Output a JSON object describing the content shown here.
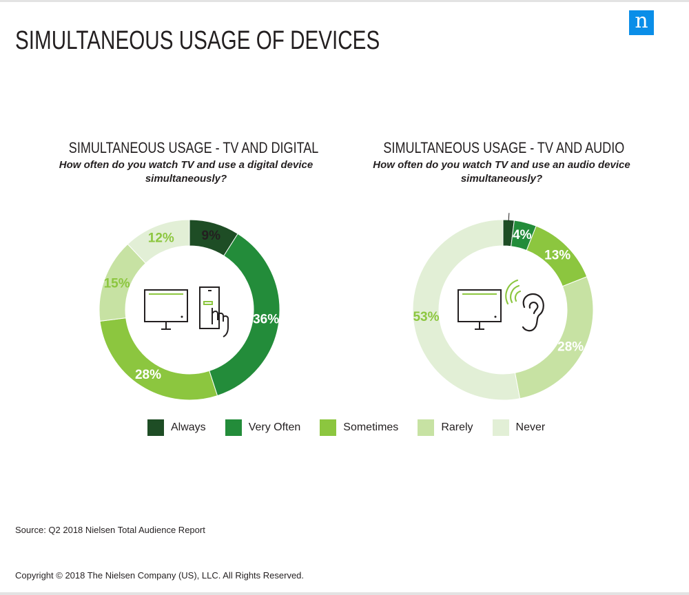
{
  "header": {
    "title": "SIMULTANEOUS USAGE OF DEVICES",
    "logo_letter": "n",
    "logo_color": "#0a8ee8"
  },
  "legend": [
    {
      "label": "Always",
      "color": "#1e4d25"
    },
    {
      "label": "Very Often",
      "color": "#238c3a"
    },
    {
      "label": "Sometimes",
      "color": "#8cc63f"
    },
    {
      "label": "Rarely",
      "color": "#c7e2a3"
    },
    {
      "label": "Never",
      "color": "#e2efd6"
    }
  ],
  "chart_data": [
    {
      "type": "pie",
      "title": "SIMULTANEOUS USAGE - TV AND DIGITAL",
      "subtitle": "How often do you watch TV and use a digital device simultaneously?",
      "categories": [
        "Always",
        "Very Often",
        "Sometimes",
        "Rarely",
        "Never"
      ],
      "values": [
        9,
        36,
        28,
        15,
        12
      ],
      "labels": [
        "9%",
        "36%",
        "28%",
        "15%",
        "12%"
      ],
      "icons": [
        "tv-icon",
        "phone-touch-icon"
      ]
    },
    {
      "type": "pie",
      "title": "SIMULTANEOUS USAGE - TV AND AUDIO",
      "subtitle": "How often do you watch TV and use an audio device simultaneously?",
      "categories": [
        "Always",
        "Very Often",
        "Sometimes",
        "Rarely",
        "Never"
      ],
      "values": [
        2,
        4,
        13,
        28,
        53
      ],
      "labels": [
        "2%",
        "4%",
        "13%",
        "28%",
        "53%"
      ],
      "icons": [
        "tv-icon",
        "ear-audio-icon"
      ]
    }
  ],
  "footer": {
    "source": "Source: Q2 2018 Nielsen Total Audience Report",
    "copyright": "Copyright © 2018 The Nielsen Company (US), LLC. All Rights Reserved."
  }
}
